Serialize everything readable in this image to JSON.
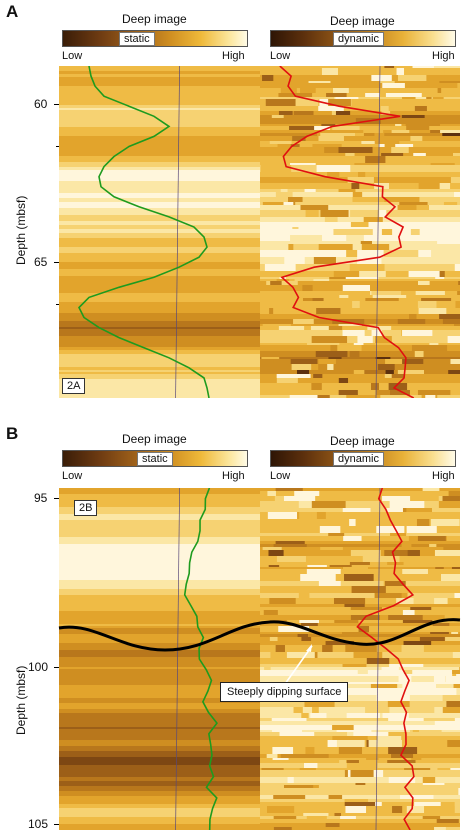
{
  "panel_a": {
    "letter": "A",
    "colorbar_static": {
      "title": "Deep image",
      "label": "static",
      "low": "Low",
      "high": "High"
    },
    "colorbar_dynamic": {
      "title": "Deep image",
      "label": "dynamic",
      "low": "Low",
      "high": "High"
    },
    "depth_axis_label": "Depth (mbsf)",
    "ticks": [
      "60",
      "65"
    ],
    "inset_label": "2A"
  },
  "panel_b": {
    "letter": "B",
    "colorbar_static": {
      "title": "Deep image",
      "label": "static",
      "low": "Low",
      "high": "High"
    },
    "colorbar_dynamic": {
      "title": "Deep image",
      "label": "dynamic",
      "low": "Low",
      "high": "High"
    },
    "depth_axis_label": "Depth (mbsf)",
    "ticks": [
      "95",
      "100",
      "105"
    ],
    "inset_label": "2B",
    "callout": "Steeply dipping surface"
  },
  "colors": {
    "static_curve": "#1e9b1e",
    "dynamic_curve": "#e01010",
    "dipping_surface": "#000000"
  }
}
